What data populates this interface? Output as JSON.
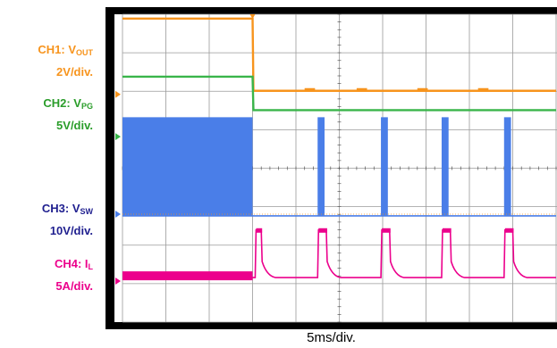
{
  "chart_data": {
    "type": "line",
    "title": "",
    "xlabel": "5ms/div.",
    "time_per_div_ms": 5,
    "horizontal_divisions": 10,
    "vertical_divisions": 8,
    "grid": true,
    "load_step_time_ms": 15,
    "channels": [
      {
        "id": "CH1",
        "name": "VOUT",
        "scale": "2V/div.",
        "color": "#f7941d",
        "label_lines": [
          {
            "main": "CH1: V",
            "sub": "OUT"
          },
          {
            "main": "2V/div."
          }
        ],
        "points": [
          [
            0,
            7.55
          ],
          [
            15,
            7.55
          ],
          [
            15.1,
            5.5
          ],
          [
            50,
            5.5
          ]
        ],
        "bumps_ms": [
          [
            21,
            22.2
          ],
          [
            27,
            28.2
          ],
          [
            34,
            35.2
          ],
          [
            41,
            42.2
          ]
        ]
      },
      {
        "id": "CH2",
        "name": "VPG",
        "scale": "5V/div.",
        "color": "#39b54a",
        "label_lines": [
          {
            "main": "CH2: V",
            "sub": "PG"
          },
          {
            "main": "5V/div."
          }
        ],
        "points": [
          [
            0,
            5.9
          ],
          [
            15,
            5.9
          ],
          [
            15.1,
            4.95
          ],
          [
            50,
            4.95
          ]
        ]
      },
      {
        "id": "CH3",
        "name": "VSW",
        "scale": "10V/div.",
        "color": "#4a7ee8",
        "label_lines": [
          {
            "main": "CH3: V",
            "sub": "SW"
          },
          {
            "main": "10V/div."
          }
        ],
        "baseline_div": 1.95,
        "high_div": 4.75,
        "switching_bursts_ms": [
          [
            0,
            15
          ],
          [
            22.5,
            23.3
          ],
          [
            29.8,
            30.6
          ],
          [
            36.8,
            37.6
          ],
          [
            44.0,
            44.8
          ]
        ]
      },
      {
        "id": "CH4",
        "name": "IL",
        "scale": "5A/div.",
        "color": "#ec008c",
        "label_lines": [
          {
            "main": "CH4: I",
            "sub": "L"
          },
          {
            "main": "5A/div."
          }
        ],
        "baseline_div": 0.2,
        "pulse_high_div": 1.55,
        "continuous_band_ms": [
          0,
          15
        ],
        "pulses_ms": [
          [
            15.3,
            16.0
          ],
          [
            22.5,
            23.5
          ],
          [
            29.8,
            30.8
          ],
          [
            36.8,
            37.8
          ],
          [
            44.0,
            45.0
          ]
        ]
      }
    ]
  }
}
